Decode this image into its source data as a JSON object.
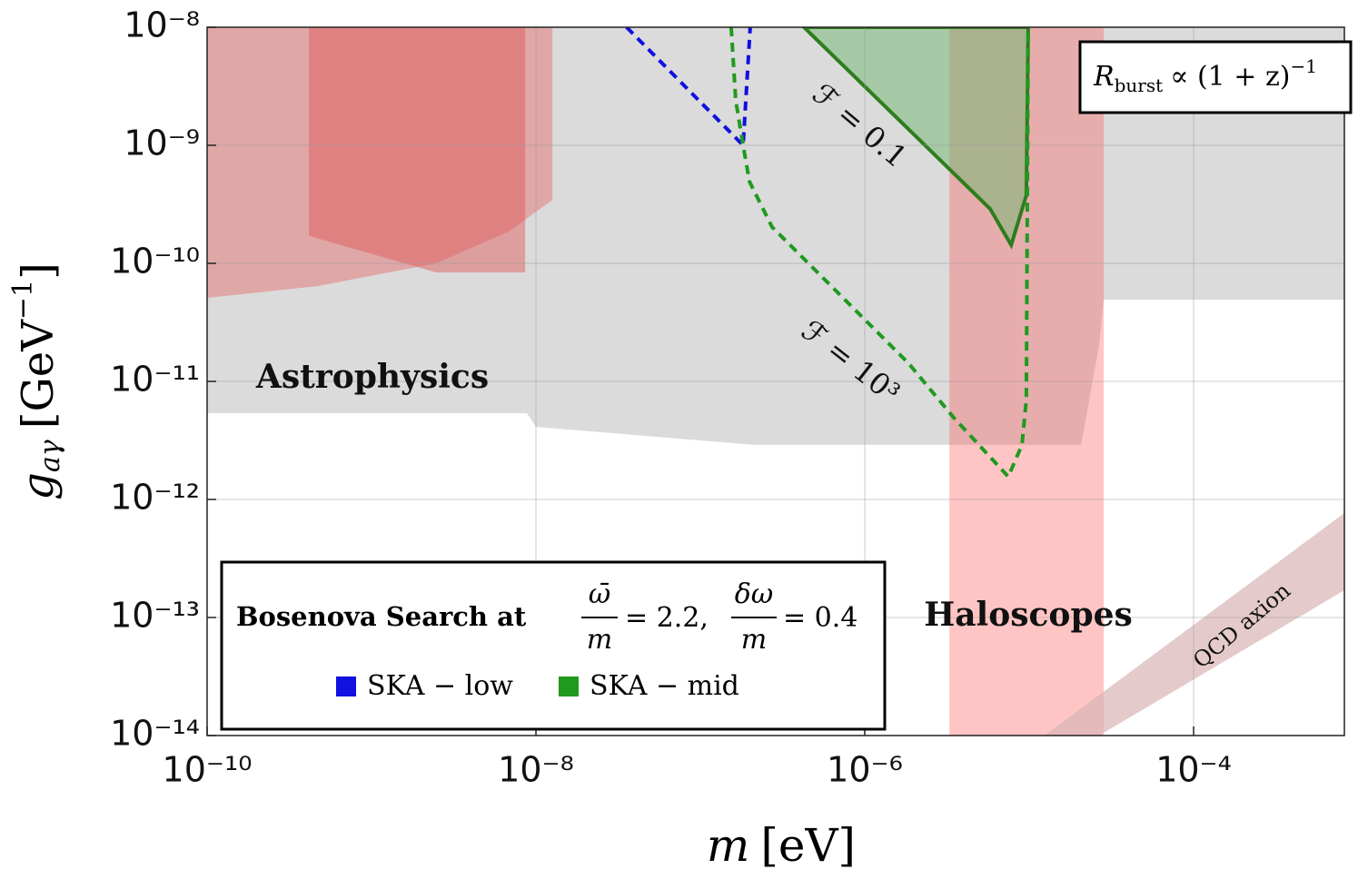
{
  "chart_data": {
    "type": "line",
    "log_x": true,
    "log_y": true,
    "grid": true,
    "xlim": [
      1e-10,
      0.000826
    ],
    "ylim": [
      1e-14,
      1e-08
    ],
    "xticks": [
      {
        "value": 1e-10,
        "label": "10⁻¹⁰"
      },
      {
        "value": 1e-08,
        "label": "10⁻⁸"
      },
      {
        "value": 1e-06,
        "label": "10⁻⁶"
      },
      {
        "value": 0.0001,
        "label": "10⁻⁴"
      }
    ],
    "yticks": [
      {
        "value": 1e-14,
        "label": "10⁻¹⁴"
      },
      {
        "value": 1e-13,
        "label": "10⁻¹³"
      },
      {
        "value": 1e-12,
        "label": "10⁻¹²"
      },
      {
        "value": 1e-11,
        "label": "10⁻¹¹"
      },
      {
        "value": 1e-10,
        "label": "10⁻¹⁰"
      },
      {
        "value": 1e-09,
        "label": "10⁻⁹"
      },
      {
        "value": 1e-08,
        "label": "10⁻⁸"
      }
    ],
    "xlabel": [
      "m",
      "[eV]"
    ],
    "ylabel": [
      "g",
      "aγ",
      "[GeV",
      "−1",
      "]"
    ],
    "box_label": [
      "R",
      "burst",
      "∝ (1 + z)",
      "−1"
    ],
    "legend_title": [
      "Bosenova Search at",
      "ω̄",
      "m",
      "= 2.2,",
      "δω",
      "m",
      "= 0.4"
    ],
    "legend": "bottom-left",
    "annotations": [
      "ℱ = 0.1",
      "ℱ = 10³",
      "Astrophysics",
      "Haloscopes",
      "QCD axion"
    ],
    "regions": [
      {
        "color": "#cfcfcf",
        "opacity": 0.75,
        "x": [
          1e-10,
          0.000826,
          0.000826,
          2.84e-05,
          2.66e-05,
          2.07e-05,
          3.48e-06,
          2.12e-07,
          1e-08,
          8.81e-09,
          1e-10
        ],
        "values": [
          1e-08,
          1e-08,
          4.92e-11,
          4.92e-11,
          2.03e-11,
          2.9e-12,
          2.9e-12,
          2.9e-12,
          4.12e-12,
          5.38e-12,
          5.38e-12
        ]
      },
      {
        "color": "#e57373",
        "opacity": 0.5,
        "x": [
          1e-10,
          1.26e-08,
          1.26e-08,
          6.83e-09,
          2.47e-09,
          4.72e-10,
          1e-10
        ],
        "values": [
          1e-08,
          1e-08,
          3.45e-10,
          1.86e-10,
          1e-10,
          6.42e-11,
          5.1e-11
        ]
      },
      {
        "color": "#e05555",
        "opacity": 0.45,
        "x": [
          4.16e-10,
          8.6e-09,
          8.6e-09,
          2.47e-09,
          4.16e-10
        ],
        "values": [
          1e-08,
          1e-08,
          8.38e-11,
          8.38e-11,
          1.71e-10
        ]
      },
      {
        "color": "#ff5a5a",
        "opacity": 0.35,
        "x": [
          3.27e-06,
          2.84e-05,
          2.84e-05,
          3.27e-06
        ],
        "values": [
          1e-08,
          1e-08,
          1e-14,
          1e-14
        ]
      },
      {
        "color": "#d9b3b3",
        "opacity": 0.7,
        "x": [
          1.24e-05,
          0.000826,
          0.000826,
          2.66e-05
        ],
        "values": [
          1e-14,
          7.67e-13,
          1.7e-13,
          1e-14
        ]
      },
      {
        "color": "#6fb86f",
        "opacity": 0.5,
        "outline": "#2e7d1e",
        "x": [
          4.27e-07,
          5.78e-06,
          7.77e-06,
          9.61e-06,
          9.86e-06
        ],
        "values": [
          1e-08,
          2.9e-10,
          1.43e-10,
          3.78e-10,
          1e-08
        ]
      }
    ],
    "series": [
      {
        "name": "SKA − low",
        "color": "#1010e0",
        "dashed": true,
        "x": [
          3.56e-08,
          1.82e-07,
          2.01e-07
        ],
        "values": [
          1e-08,
          1e-09,
          1e-08
        ]
      },
      {
        "name": "SKA − mid",
        "color": "#1f9a1f",
        "dashed": true,
        "x": [
          1.54e-07,
          1.64e-07,
          1.82e-07,
          1.99e-07,
          2.73e-07,
          5.16e-07,
          1.84e-06,
          3.48e-06,
          7.46e-06,
          9.04e-06,
          9.61e-06,
          9.86e-06
        ],
        "values": [
          1e-08,
          2.42e-09,
          1e-09,
          4.92e-10,
          2.03e-10,
          8.38e-11,
          1.43e-11,
          4.92e-12,
          1.56e-12,
          2.9e-12,
          7.02e-12,
          1e-08
        ]
      }
    ]
  }
}
